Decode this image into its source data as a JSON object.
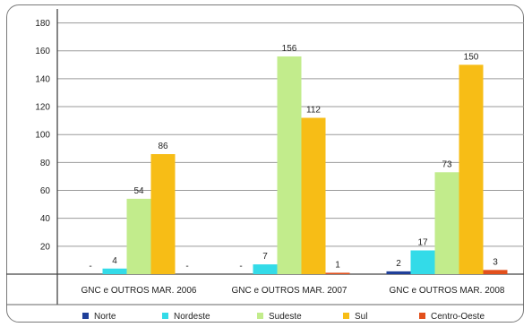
{
  "chart_data": {
    "type": "bar",
    "categories": [
      "GNC e OUTROS MAR. 2006",
      "GNC e OUTROS MAR. 2007",
      "GNC e OUTROS MAR. 2008"
    ],
    "series": [
      {
        "name": "Norte",
        "color": "#1f3f99",
        "values": [
          0,
          0,
          2
        ],
        "labels": [
          "-",
          "-",
          "2"
        ]
      },
      {
        "name": "Nordeste",
        "color": "#33dbe8",
        "values": [
          4,
          7,
          17
        ],
        "labels": [
          "4",
          "7",
          "17"
        ]
      },
      {
        "name": "Sudeste",
        "color": "#c2ec8c",
        "values": [
          54,
          156,
          73
        ],
        "labels": [
          "54",
          "156",
          "73"
        ]
      },
      {
        "name": "Sul",
        "color": "#f7bd16",
        "values": [
          86,
          112,
          150
        ],
        "labels": [
          "86",
          "112",
          "150"
        ]
      },
      {
        "name": "Centro-Oeste",
        "color": "#e2501c",
        "values": [
          0,
          1,
          3
        ],
        "labels": [
          "-",
          "1",
          "3"
        ]
      }
    ],
    "yticks": [
      20,
      40,
      60,
      80,
      100,
      120,
      140,
      160,
      180
    ],
    "ylim": [
      0,
      190
    ],
    "grid": true,
    "legend_position": "bottom"
  }
}
